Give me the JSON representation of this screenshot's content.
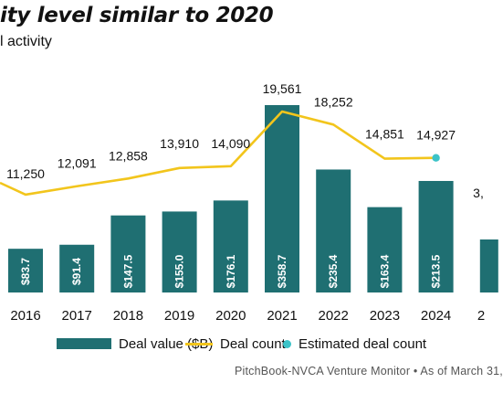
{
  "title": "ity level similar to 2020",
  "subtitle": "l activity",
  "colors": {
    "bar": "#1f6f72",
    "line": "#f2c51c",
    "estimate_dot": "#3cc3c8",
    "text": "#111111"
  },
  "legend": {
    "deal_value": "Deal value ($B)",
    "deal_count": "Deal count",
    "estimated": "Estimated deal count"
  },
  "source": "PitchBook-NVCA Venture Monitor  •  As of March 31,",
  "chart_data": {
    "type": "bar",
    "categories": [
      "2016",
      "2017",
      "2018",
      "2019",
      "2020",
      "2021",
      "2022",
      "2023",
      "2024",
      "2"
    ],
    "series": [
      {
        "name": "Deal value ($B)",
        "type": "bar",
        "values": [
          83.7,
          91.4,
          147.5,
          155.0,
          176.1,
          358.7,
          235.4,
          163.4,
          213.5,
          null
        ],
        "labels": [
          "$83.7",
          "$91.4",
          "$147.5",
          "$155.0",
          "$176.1",
          "$358.7",
          "$235.4",
          "$163.4",
          "$213.5",
          ""
        ]
      },
      {
        "name": "Deal count",
        "type": "line",
        "values": [
          11250,
          12091,
          12858,
          13910,
          14090,
          19561,
          18252,
          14851,
          14927,
          null
        ],
        "labels": [
          "11,250",
          "12,091",
          "12,858",
          "13,910",
          "14,090",
          "19,561",
          "18,252",
          "14,851",
          "14,927",
          "3,"
        ]
      }
    ],
    "estimated_point": {
      "category": "2024",
      "value": 14927
    },
    "legend_position": "bottom",
    "grid": false
  }
}
